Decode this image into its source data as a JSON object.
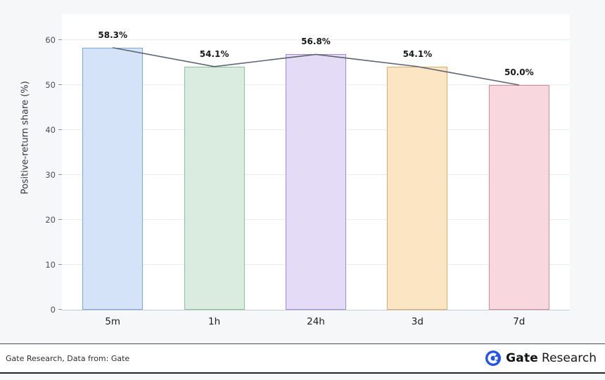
{
  "chart_data": {
    "type": "bar",
    "title": "",
    "categories": [
      "5m",
      "1h",
      "24h",
      "3d",
      "7d"
    ],
    "values": [
      58.3,
      54.1,
      56.8,
      54.1,
      50.0
    ],
    "value_labels": [
      "58.3%",
      "54.1%",
      "56.8%",
      "54.1%",
      "50.0%"
    ],
    "xlabel": "",
    "ylabel": "Positive-return share (%)",
    "yticks": [
      0,
      10,
      20,
      30,
      40,
      50,
      60
    ],
    "ylim": [
      0,
      65
    ],
    "grid": true,
    "legend": "none",
    "bar_fill_colors": [
      "#d4e3f8",
      "#d9ecdf",
      "#e4dbf6",
      "#fbe5c2",
      "#f8d8de"
    ],
    "bar_edge_colors": [
      "#7fa6d9",
      "#8cc098",
      "#a189d6",
      "#d9ae6c",
      "#d28b98"
    ],
    "line_overlay": {
      "color": "#5d6471",
      "width": 1.6
    }
  },
  "footer": {
    "source_text": "Gate Research, Data from: Gate",
    "logo": {
      "brand_bold": "Gate",
      "brand_light": "Research",
      "accent_color": "#2354e5"
    }
  }
}
